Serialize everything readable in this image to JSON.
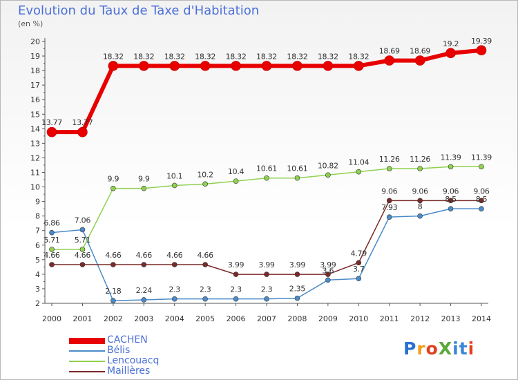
{
  "header": {
    "title": "Evolution du Taux de Taxe d'Habitation",
    "unit": "(en %)"
  },
  "logo": {
    "text": "ProXiti",
    "letters": [
      "P",
      "r",
      "o",
      "X",
      "i",
      "t",
      "i"
    ],
    "colors": [
      "#2a6fd6",
      "#f29b1d",
      "#e23f1f",
      "#5aa83a",
      "#3a86d8",
      "#3a86d8",
      "#e23f1f"
    ]
  },
  "chart_data": {
    "type": "line",
    "x": [
      "2000",
      "2001",
      "2002",
      "2003",
      "2004",
      "2005",
      "2006",
      "2007",
      "2008",
      "2009",
      "2010",
      "2011",
      "2012",
      "2013",
      "2014"
    ],
    "ylim": [
      2,
      20
    ],
    "yticks": [
      "2",
      "3",
      "4",
      "5",
      "6",
      "7",
      "8",
      "9",
      "10",
      "11",
      "12",
      "13",
      "14",
      "15",
      "16",
      "17",
      "18",
      "19",
      "20"
    ],
    "grid": false,
    "legend": "bottom-left",
    "series": [
      {
        "name": "CACHEN",
        "color": "#e80000",
        "values": [
          13.77,
          13.77,
          18.32,
          18.32,
          18.32,
          18.32,
          18.32,
          18.32,
          18.32,
          18.32,
          18.32,
          18.69,
          18.69,
          19.2,
          19.39
        ],
        "labels": [
          "13.77",
          "13.77",
          "18.32",
          "18.32",
          "18.32",
          "18.32",
          "18.32",
          "18.32",
          "18.32",
          "18.32",
          "18.32",
          "18.69",
          "18.69",
          "19.2",
          "19.39"
        ]
      },
      {
        "name": "Bélis",
        "color": "#4a8bc8",
        "values": [
          6.86,
          7.06,
          2.18,
          2.24,
          2.3,
          2.3,
          2.3,
          2.3,
          2.35,
          3.6,
          3.7,
          7.93,
          8,
          8.5,
          8.5
        ],
        "labels": [
          "6.86",
          "7.06",
          "2.18",
          "2.24",
          "2.3",
          "2.3",
          "2.3",
          "2.3",
          "2.35",
          "3.6",
          "3.7",
          "7.93",
          "8",
          "8.5",
          "8.5"
        ]
      },
      {
        "name": "Lencouacq",
        "color": "#8fd14f",
        "values": [
          5.71,
          5.71,
          9.9,
          9.9,
          10.1,
          10.2,
          10.4,
          10.61,
          10.61,
          10.82,
          11.04,
          11.26,
          11.26,
          11.39,
          11.39
        ],
        "labels": [
          "5.71",
          "5.71",
          "9.9",
          "9.9",
          "10.1",
          "10.2",
          "10.4",
          "10.61",
          "10.61",
          "10.82",
          "11.04",
          "11.26",
          "11.26",
          "11.39",
          "11.39"
        ]
      },
      {
        "name": "Maillères",
        "color": "#7a2a2a",
        "values": [
          4.66,
          4.66,
          4.66,
          4.66,
          4.66,
          4.66,
          3.99,
          3.99,
          3.99,
          3.99,
          4.79,
          9.06,
          9.06,
          9.06,
          9.06
        ],
        "labels": [
          "4.66",
          "4.66",
          "4.66",
          "4.66",
          "4.66",
          "4.66",
          "3.99",
          "3.99",
          "3.99",
          "3.99",
          "4.79",
          "9.06",
          "9.06",
          "9.06",
          "9.06"
        ]
      }
    ]
  }
}
